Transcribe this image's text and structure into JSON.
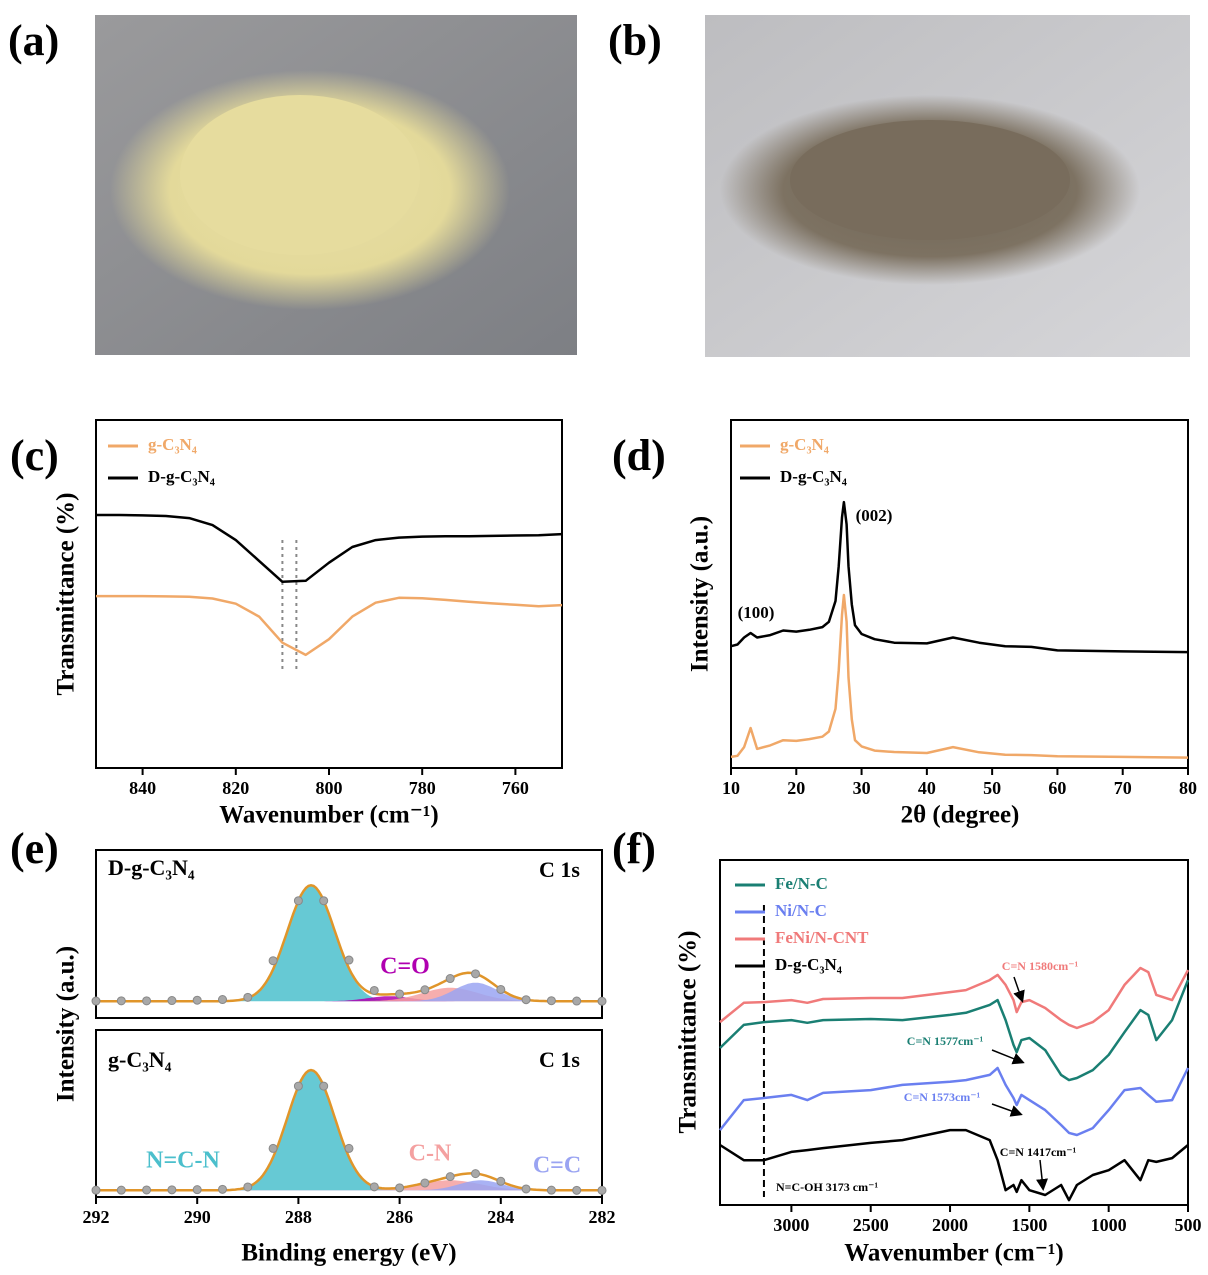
{
  "images": [
    {
      "label": "(a)"
    },
    {
      "label": "(b)"
    }
  ],
  "chart_data": [
    {
      "type": "line",
      "panel": "(c)",
      "xlabel": "Wavenumber (cm⁻¹)",
      "ylabel": "Transmittance (%)",
      "x": [
        850,
        845,
        840,
        835,
        830,
        825,
        820,
        815,
        810,
        805,
        800,
        795,
        790,
        785,
        780,
        775,
        770,
        765,
        760,
        755,
        750
      ],
      "series": [
        {
          "name": "g-C₃N₄",
          "color": "#f0a868",
          "values": [
            49.4,
            49.4,
            49.4,
            49.3,
            49.2,
            48.7,
            47.2,
            43.5,
            36,
            32.5,
            37,
            43.5,
            47.5,
            48.9,
            48.8,
            48.3,
            47.8,
            47.3,
            46.9,
            46.5,
            46.8
          ]
        },
        {
          "name": "D-g-C₃N₄",
          "color": "#000000",
          "values": [
            72.7,
            72.7,
            72.6,
            72.4,
            71.8,
            69.8,
            65.5,
            59.5,
            53.5,
            53.8,
            59,
            63.5,
            65.5,
            66.2,
            66.5,
            66.6,
            66.6,
            66.7,
            66.8,
            66.9,
            67.2
          ]
        }
      ],
      "reference_lines": [
        810,
        807
      ],
      "xlim": [
        850,
        750
      ],
      "xticks": [
        840,
        820,
        800,
        780,
        760
      ],
      "ylim": [
        0,
        100
      ]
    },
    {
      "type": "line",
      "panel": "(d)",
      "xlabel": "2θ (degree)",
      "ylabel": "Intensity (a.u.)",
      "x": [
        10,
        11,
        12,
        13,
        14,
        16,
        18,
        20,
        22,
        24,
        25,
        26,
        26.5,
        27,
        27.3,
        27.7,
        28,
        28.5,
        29,
        30,
        32,
        35,
        40,
        44,
        48,
        52,
        56,
        60,
        70,
        80
      ],
      "series": [
        {
          "name": "g-C₃N₄",
          "color": "#f0a868",
          "values": [
            3.2,
            3.5,
            6,
            11.5,
            5.5,
            6.5,
            8,
            7.8,
            8.3,
            9,
            10.5,
            17,
            28,
            44,
            49.7,
            42,
            26,
            14,
            8,
            6.2,
            5,
            4.6,
            4.3,
            6,
            4.5,
            3.8,
            3.7,
            3.4,
            3.2,
            3.0
          ]
        },
        {
          "name": "D-g-C₃N₄",
          "color": "#000000",
          "values": [
            35.0,
            35.5,
            37.5,
            38.8,
            37.5,
            38.2,
            39.5,
            39.2,
            39.7,
            40.5,
            42,
            48,
            58,
            72,
            76.4,
            70,
            58,
            47,
            41,
            38.5,
            37,
            36,
            35.8,
            37.5,
            36,
            35,
            34.8,
            33.8,
            33.5,
            33.3
          ]
        }
      ],
      "annotations": [
        {
          "text": "(002)",
          "color": "#000000"
        },
        {
          "text": "(100)",
          "color": "#000000"
        }
      ],
      "xlim": [
        10,
        80
      ],
      "xticks": [
        10,
        20,
        30,
        40,
        50,
        60,
        70,
        80
      ],
      "ylim": [
        0,
        100
      ]
    },
    {
      "type": "area",
      "panel": "(e)",
      "sample": "D-g-C₃N₄",
      "core_level": "C 1s",
      "ylabel": "Intensity (a.u.)",
      "x": [
        292,
        291.5,
        291,
        290.5,
        290,
        289.5,
        289,
        288.5,
        288,
        287.5,
        287,
        286.5,
        286,
        285.5,
        285,
        284.5,
        284,
        283.5,
        283,
        282.5,
        282
      ],
      "values": [
        10.1,
        10.2,
        10.2,
        10.4,
        10.6,
        11.0,
        12.3,
        34.1,
        69.8,
        69.8,
        34.5,
        16.4,
        14.3,
        16.8,
        23.5,
        26.3,
        17,
        10.9,
        10.3,
        10.1,
        10.0
      ],
      "baseline": 10,
      "envelope_color": "#e0952a",
      "point_color": "#a8a8a8",
      "components": [
        {
          "center": 287.75,
          "height": 69,
          "fwhm": 1.1,
          "color": "#4bbfcc"
        },
        {
          "name": "C=O",
          "center": 286.2,
          "height": 3,
          "fwhm": 1.0,
          "color": "#b000b0"
        },
        {
          "center": 285.0,
          "height": 8,
          "fwhm": 1.3,
          "color": "#f4a0a0"
        },
        {
          "center": 284.5,
          "height": 11,
          "fwhm": 1.0,
          "color": "#9aa4f2"
        }
      ],
      "xlim": [
        292,
        282
      ],
      "ylim": [
        0,
        100
      ]
    },
    {
      "type": "area",
      "sample": "g-C₃N₄",
      "core_level": "C 1s",
      "xlabel": "Binding energy (eV)",
      "x": [
        292,
        291.5,
        291,
        290.5,
        290,
        289.5,
        289,
        288.5,
        288,
        287.5,
        287,
        286.5,
        286,
        285.5,
        285,
        284.5,
        284,
        283.5,
        283,
        282.5,
        282
      ],
      "values": [
        4.1,
        4.1,
        4.2,
        4.3,
        4.4,
        4.6,
        6,
        29.1,
        66.4,
        66.4,
        29.1,
        6.1,
        5.5,
        8.4,
        12.2,
        14,
        9.4,
        4.8,
        4.1,
        4,
        4
      ],
      "baseline": 4,
      "envelope_color": "#e0952a",
      "point_color": "#a8a8a8",
      "components": [
        {
          "name": "N=C-N",
          "center": 287.75,
          "height": 72,
          "fwhm": 1.1,
          "color": "#4bbfcc"
        },
        {
          "name": "C-N",
          "center": 285.0,
          "height": 6,
          "fwhm": 1.4,
          "color": "#f4a0a0"
        },
        {
          "name": "C=C",
          "center": 284.4,
          "height": 6,
          "fwhm": 1.0,
          "color": "#9aa4f2"
        }
      ],
      "xlim": [
        292,
        282
      ],
      "xticks": [
        292,
        290,
        288,
        286,
        284,
        282
      ],
      "ylim": [
        0,
        100
      ]
    },
    {
      "type": "line",
      "panel": "(f)",
      "xlabel": "Wavenumber (cm⁻¹)",
      "ylabel": "Transmittance (%)",
      "x": [
        3450,
        3300,
        3173,
        3000,
        2900,
        2800,
        2500,
        2300,
        2000,
        1900,
        1750,
        1700,
        1650,
        1600,
        1580,
        1550,
        1500,
        1400,
        1300,
        1250,
        1200,
        1100,
        1000,
        900,
        800,
        750,
        700,
        600,
        500
      ],
      "series": [
        {
          "name": "Fe/N-C",
          "color": "#1a7f73",
          "values": [
            45.5,
            52.2,
            53.0,
            53.6,
            52.8,
            53.6,
            53.9,
            53.6,
            55.1,
            55.7,
            58.0,
            59.4,
            53.6,
            46.4,
            44.3,
            47.8,
            48.4,
            44.9,
            37.7,
            36.2,
            36.8,
            39.1,
            43.5,
            50.1,
            56.5,
            55.1,
            47.8,
            53.6,
            65.2
          ]
        },
        {
          "name": "Ni/N-C",
          "color": "#6a7ff0",
          "values": [
            21.7,
            30.4,
            31.0,
            31.9,
            30.4,
            32.5,
            33.3,
            34.8,
            35.7,
            36.2,
            37.7,
            39.7,
            34.8,
            31.0,
            29.0,
            31.9,
            30.4,
            27.5,
            23.2,
            20.9,
            20.3,
            22.3,
            27.5,
            33.3,
            33.9,
            31.9,
            29.9,
            30.4,
            39.7
          ]
        },
        {
          "name": "FeNi/N-CNT",
          "color": "#f07a7a",
          "values": [
            53.0,
            58.6,
            58.8,
            59.4,
            58.6,
            59.7,
            60.0,
            60.0,
            61.7,
            62.3,
            65.2,
            66.7,
            63.8,
            59.4,
            55.9,
            58.8,
            59.4,
            57.1,
            53.6,
            52.2,
            51.3,
            53.0,
            56.5,
            63.8,
            68.7,
            67.5,
            60.9,
            59.4,
            68.1
          ]
        },
        {
          "name": "D-g-C₃N₄",
          "color": "#000000",
          "values": [
            17.4,
            13.0,
            13.0,
            15.4,
            15.9,
            16.5,
            18.0,
            18.8,
            21.7,
            21.7,
            18.8,
            13.0,
            4.3,
            5.8,
            3.8,
            7.2,
            4.3,
            2.9,
            5.8,
            1.4,
            5.8,
            8.7,
            10.1,
            13.0,
            7.2,
            13.0,
            12.5,
            13.6,
            17.4
          ]
        }
      ],
      "annotations": [
        {
          "text": "C=N 1580cm⁻¹",
          "color": "#f07a7a"
        },
        {
          "text": "C=N 1577cm⁻¹",
          "color": "#1a7f73"
        },
        {
          "text": "C=N 1573cm⁻¹",
          "color": "#6a7ff0"
        },
        {
          "text": "C=N 1417cm⁻¹",
          "color": "#000000"
        },
        {
          "text": "N=C-OH 3173 cm⁻¹",
          "color": "#000000"
        }
      ],
      "reference_lines": [
        3173
      ],
      "xlim": [
        3450,
        500
      ],
      "xticks": [
        3000,
        2500,
        2000,
        1500,
        1000,
        500
      ],
      "ylim": [
        0,
        100
      ]
    }
  ]
}
